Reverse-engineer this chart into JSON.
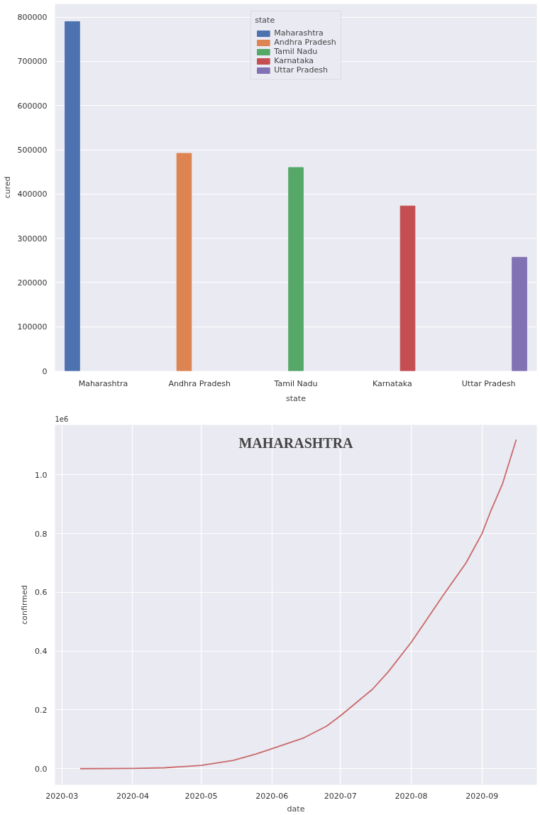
{
  "chart_data": [
    {
      "type": "bar",
      "xlabel": "state",
      "ylabel": "cured",
      "legend_title": "state",
      "categories": [
        "Maharashtra",
        "Andhra Pradesh",
        "Tamil Nadu",
        "Karnataka",
        "Uttar Pradesh"
      ],
      "series": [
        {
          "name": "Maharashtra",
          "color": "#4c72b0",
          "values": [
            790000,
            null,
            null,
            null,
            null
          ]
        },
        {
          "name": "Andhra Pradesh",
          "color": "#dd8452",
          "values": [
            null,
            492000,
            null,
            null,
            null
          ]
        },
        {
          "name": "Tamil Nadu",
          "color": "#55a868",
          "values": [
            null,
            null,
            460000,
            null,
            null
          ]
        },
        {
          "name": "Karnataka",
          "color": "#c44e52",
          "values": [
            null,
            null,
            null,
            373000,
            null
          ]
        },
        {
          "name": "Uttar Pradesh",
          "color": "#8172b3",
          "values": [
            null,
            null,
            null,
            null,
            257000
          ]
        }
      ],
      "ylim": [
        0,
        830000
      ],
      "yticks": [
        0,
        100000,
        200000,
        300000,
        400000,
        500000,
        600000,
        700000,
        800000
      ],
      "grid": "y",
      "legend": "top"
    },
    {
      "type": "line",
      "title": "MAHARASHTRA",
      "xlabel": "date",
      "ylabel": "confirmed",
      "annotations": [
        "1e6"
      ],
      "x": [
        "2020-03-09",
        "2020-04-01",
        "2020-04-15",
        "2020-05-01",
        "2020-05-15",
        "2020-05-25",
        "2020-06-01",
        "2020-06-15",
        "2020-06-25",
        "2020-07-01",
        "2020-07-15",
        "2020-07-22",
        "2020-08-01",
        "2020-08-08",
        "2020-08-15",
        "2020-08-25",
        "2020-09-01",
        "2020-09-05",
        "2020-09-10",
        "2020-09-16"
      ],
      "series": [
        {
          "color": "#c96a6a",
          "values": [
            0,
            0.001,
            0.003,
            0.011,
            0.028,
            0.05,
            0.068,
            0.105,
            0.145,
            0.18,
            0.27,
            0.33,
            0.43,
            0.51,
            0.59,
            0.7,
            0.8,
            0.88,
            0.97,
            1.12
          ]
        }
      ],
      "xlim": [
        "2020-02-27",
        "2020-09-25"
      ],
      "xticks": [
        "2020-03",
        "2020-04",
        "2020-05",
        "2020-06",
        "2020-07",
        "2020-08",
        "2020-09"
      ],
      "ylim": [
        -0.055,
        1.17
      ],
      "yticks": [
        {
          "value": 0,
          "label": "0.0"
        },
        0.2,
        0.4,
        0.6,
        0.8,
        {
          "value": 1,
          "label": "1.0"
        }
      ],
      "grid": true,
      "line_style": "solid"
    }
  ]
}
